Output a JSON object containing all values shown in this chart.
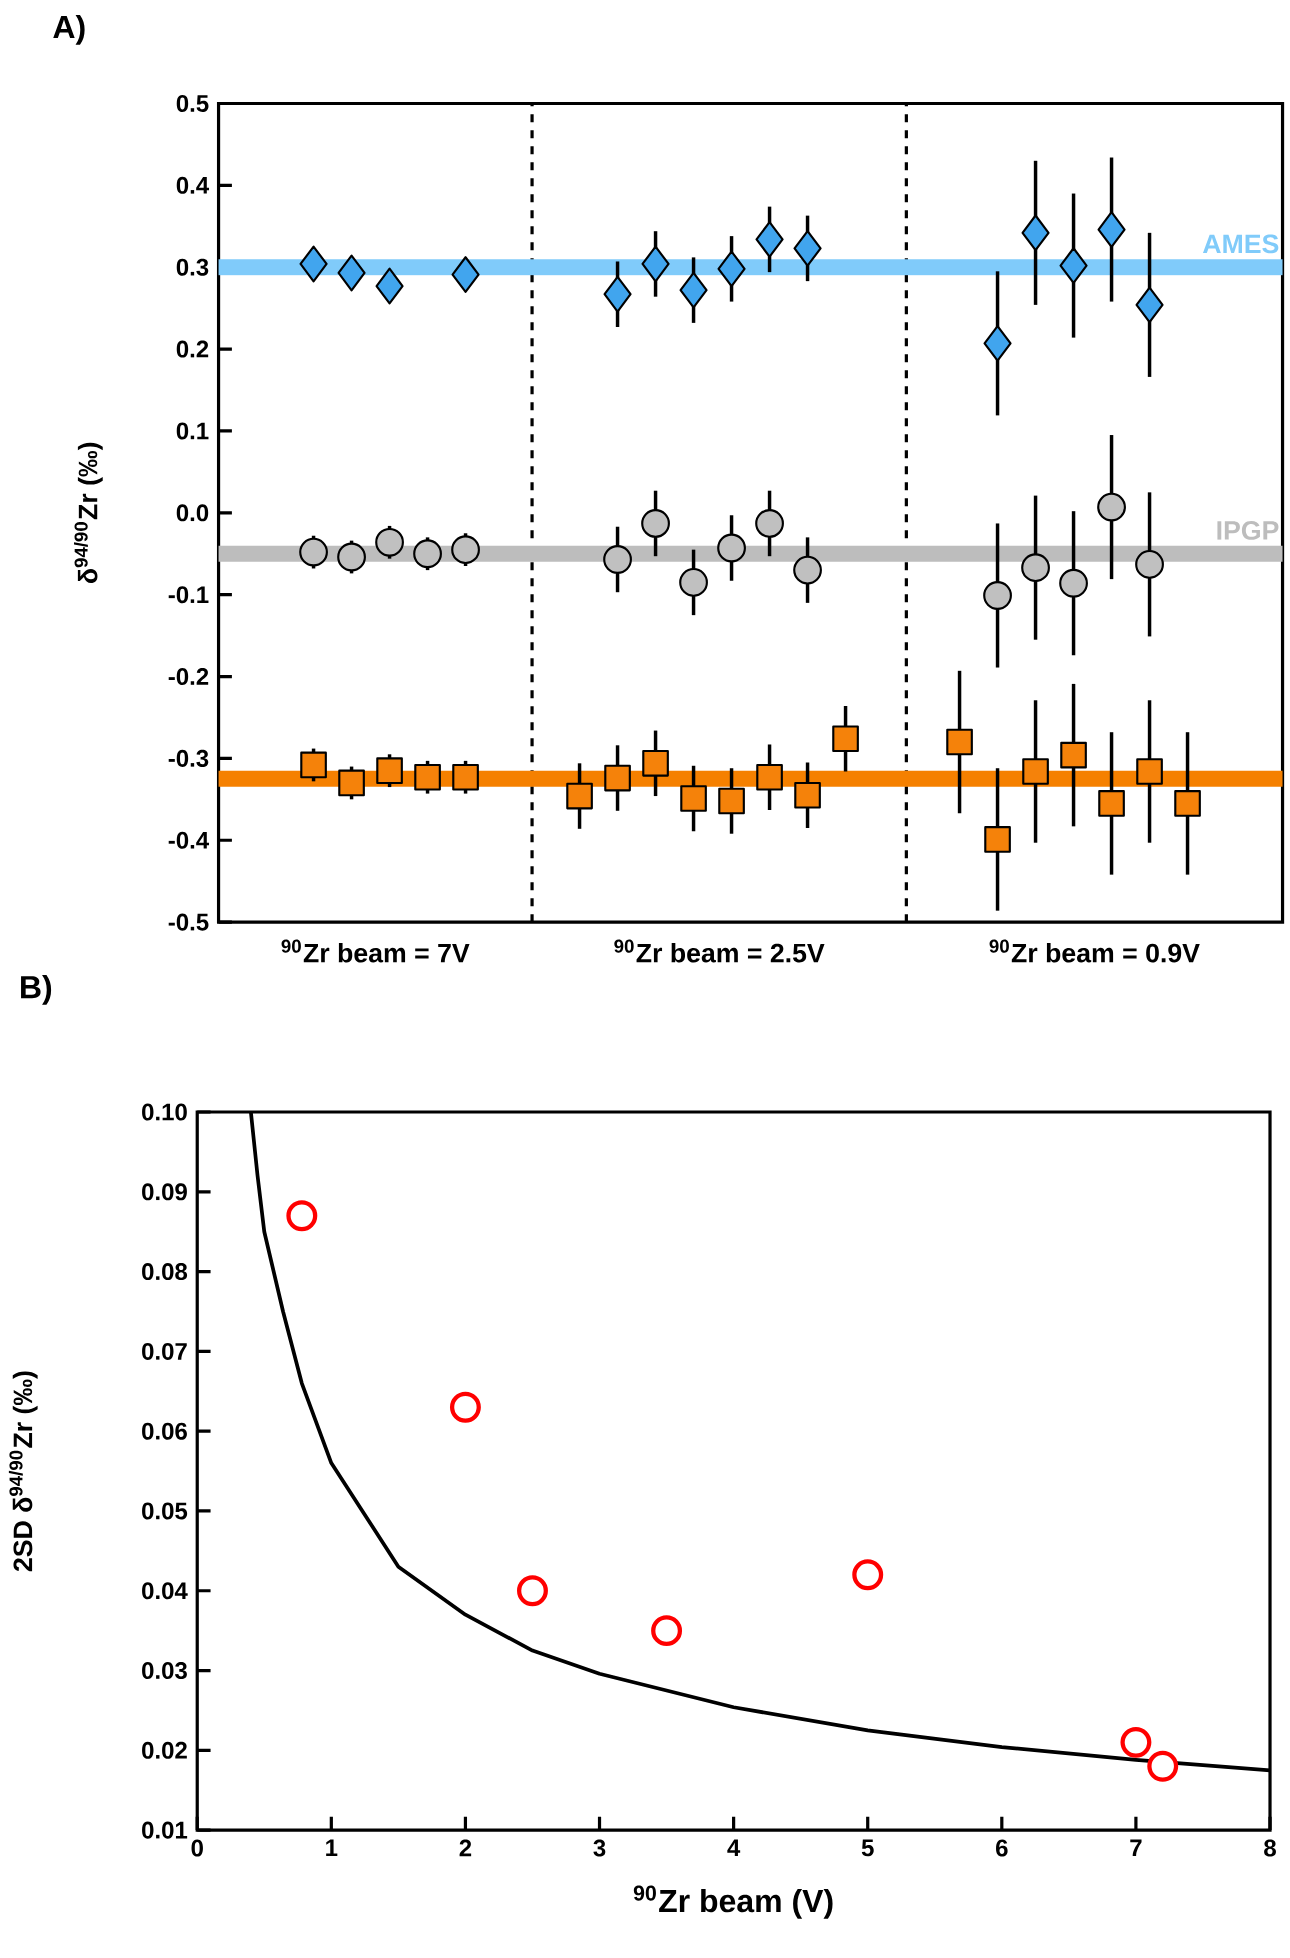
{
  "chart_data": [
    {
      "type": "scatter",
      "title": "A)",
      "ylabel": "δ$^{94/90}$Zr (‰)",
      "categories": [
        null,
        null,
        null,
        null,
        null,
        null,
        null,
        null,
        null,
        null,
        null,
        null,
        null,
        null,
        null,
        null,
        null,
        null,
        null,
        null,
        null,
        null,
        null,
        null,
        null,
        null,
        null,
        null
      ],
      "series": [
        {
          "color": "#41a5ee",
          "marker": "diamond",
          "values": [
            null,
            null,
            0.304,
            0.293,
            0.277,
            null,
            0.291,
            null,
            null,
            null,
            0.267,
            0.304,
            0.272,
            0.298,
            0.334,
            0.323,
            null,
            null,
            null,
            null,
            0.207,
            0.342,
            0.302,
            0.346,
            0.254,
            null,
            null,
            null
          ],
          "errors": [
            null,
            null,
            0.012,
            0.012,
            0.012,
            null,
            0.012,
            null,
            null,
            null,
            0.04,
            0.04,
            0.04,
            0.04,
            0.04,
            0.04,
            null,
            null,
            null,
            null,
            0.088,
            0.088,
            0.088,
            0.088,
            0.088,
            null,
            null,
            null
          ]
        },
        {
          "color": "#c0c0c0",
          "marker": "circle",
          "values": [
            null,
            null,
            -0.048,
            -0.054,
            -0.036,
            -0.05,
            -0.045,
            null,
            null,
            null,
            -0.057,
            -0.013,
            -0.085,
            -0.043,
            -0.013,
            -0.07,
            null,
            null,
            null,
            null,
            -0.101,
            -0.067,
            -0.086,
            0.007,
            -0.063,
            null,
            null,
            null
          ],
          "errors": [
            null,
            null,
            0.02,
            0.02,
            0.02,
            0.02,
            0.02,
            null,
            null,
            null,
            0.04,
            0.04,
            0.04,
            0.04,
            0.04,
            0.04,
            null,
            null,
            null,
            null,
            0.088,
            0.088,
            0.088,
            0.088,
            0.088,
            null,
            null,
            null
          ]
        },
        {
          "color": "#f5820a",
          "marker": "square",
          "values": [
            null,
            null,
            -0.308,
            -0.33,
            -0.315,
            -0.323,
            -0.323,
            null,
            null,
            -0.346,
            -0.324,
            -0.306,
            -0.349,
            -0.352,
            -0.323,
            -0.345,
            -0.276,
            null,
            null,
            -0.28,
            -0.399,
            -0.316,
            -0.296,
            -0.355,
            -0.316,
            -0.355,
            null,
            null
          ],
          "errors": [
            null,
            null,
            0.02,
            0.02,
            0.02,
            0.02,
            0.02,
            null,
            null,
            0.04,
            0.04,
            0.04,
            0.04,
            0.04,
            0.04,
            0.04,
            0.04,
            null,
            null,
            0.087,
            0.087,
            0.087,
            0.087,
            0.087,
            0.087,
            0.087,
            null,
            null
          ]
        }
      ],
      "ylim": [
        -0.5,
        0.5
      ],
      "yticks": [
        -0.5,
        -0.4,
        -0.3,
        -0.2,
        -0.1,
        {
          "value": 0,
          "label": "0.0"
        },
        0.1,
        0.2,
        0.3,
        0.4,
        0.5
      ],
      "ref_lines": [
        {
          "axis": "y",
          "value": 0.3,
          "label": "AMES",
          "color": "#80cbfa"
        },
        {
          "axis": "y",
          "value": -0.05,
          "label": "IPGP",
          "color": "#bdbdbd"
        },
        {
          "axis": "y",
          "value": -0.325,
          "color": "#f58000"
        }
      ],
      "annotations": [
        "$^{90}$Zr beam = 7V",
        "$^{90}$Zr beam = 2.5V",
        "$^{90}$Zr beam = 0.9V"
      ]
    },
    {
      "type": "scatter",
      "title": "B)",
      "xlabel": "$^{90}$Zr beam (V)",
      "ylabel": "2SD δ$^{94/90}$Zr (‰)",
      "series": [
        {
          "color": "#ff0000",
          "marker": "circle",
          "x": [
            0.78,
            2,
            2.5,
            3.5,
            5,
            7,
            7.2
          ],
          "values": [
            0.087,
            0.063,
            0.04,
            0.035,
            0.042,
            0.021,
            0.018
          ]
        },
        {
          "type": "line",
          "color": "#000000",
          "marker": "none",
          "x": [
            0.4,
            0.45,
            0.5,
            0.64,
            0.78,
            1,
            1.27,
            1.5,
            2,
            2.5,
            3,
            4,
            5,
            6,
            7,
            8
          ],
          "values": [
            0.1,
            0.092,
            0.085,
            0.075,
            0.066,
            0.056,
            0.049,
            0.043,
            0.037,
            0.0325,
            0.0296,
            0.0254,
            0.0225,
            0.0204,
            0.0188,
            0.0175
          ]
        }
      ],
      "xlim": [
        0,
        8
      ],
      "xticks": [
        0,
        1,
        2,
        3,
        4,
        5,
        6,
        7,
        8
      ],
      "ylim": [
        0.01,
        0.1
      ],
      "yticks": [
        0.01,
        0.02,
        0.03,
        0.04,
        0.05,
        0.06,
        0.07,
        0.08,
        0.09,
        {
          "value": 0.1,
          "label": "0.10"
        }
      ]
    }
  ]
}
